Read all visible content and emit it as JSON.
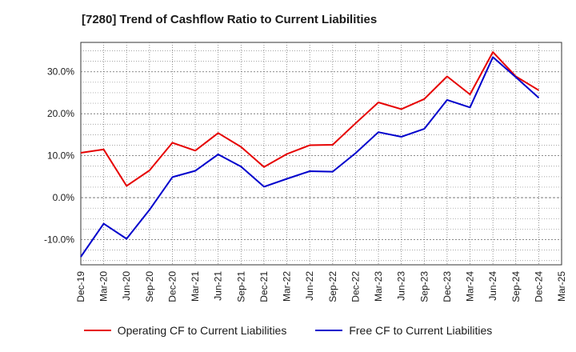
{
  "chart_data": {
    "type": "line",
    "title": "[7280]  Trend of Cashflow Ratio to Current Liabilities",
    "x": [
      "Dec-19",
      "Mar-20",
      "Jun-20",
      "Sep-20",
      "Dec-20",
      "Mar-21",
      "Jun-21",
      "Sep-21",
      "Dec-21",
      "Mar-22",
      "Jun-22",
      "Sep-22",
      "Dec-22",
      "Mar-23",
      "Jun-23",
      "Sep-23",
      "Dec-23",
      "Mar-24",
      "Jun-24",
      "Sep-24",
      "Dec-24",
      "Mar-25"
    ],
    "y_ticks": [
      "-10.0%",
      "0.0%",
      "10.0%",
      "20.0%",
      "30.0%"
    ],
    "ylim": [
      -16,
      37
    ],
    "grid": true,
    "legend_position": "bottom",
    "series": [
      {
        "name": "Operating CF to Current Liabilities",
        "color": "#e60000",
        "values": [
          10.7,
          11.5,
          2.8,
          6.5,
          13.1,
          11.2,
          15.4,
          12.1,
          7.3,
          10.4,
          12.5,
          12.6,
          17.7,
          22.7,
          21.1,
          23.5,
          28.9,
          24.6,
          34.7,
          28.9,
          25.6,
          null
        ]
      },
      {
        "name": "Free CF to Current Liabilities",
        "color": "#0000cc",
        "values": [
          -14.1,
          -6.2,
          -9.8,
          -2.9,
          4.9,
          6.4,
          10.3,
          7.4,
          2.6,
          4.5,
          6.3,
          6.2,
          10.6,
          15.6,
          14.5,
          16.4,
          23.3,
          21.5,
          33.5,
          28.7,
          23.8,
          null
        ]
      }
    ]
  }
}
